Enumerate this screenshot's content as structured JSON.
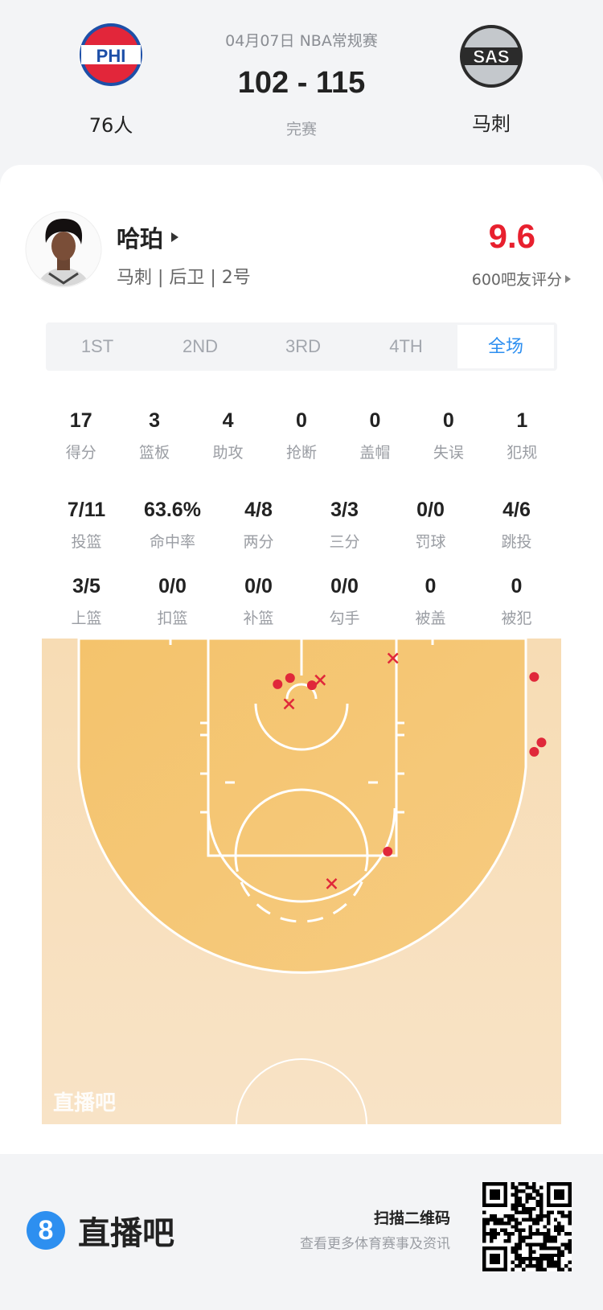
{
  "match": {
    "date_league": "04月07日 NBA常规赛",
    "score": "102 - 115",
    "status": "完赛",
    "home": {
      "name": "76人",
      "logo_text": "PHI",
      "colors": [
        "#1d4fa8",
        "#e2263a"
      ]
    },
    "away": {
      "name": "马刺",
      "logo_text": "SAS",
      "colors": [
        "#2b2b2b",
        "#c4c8cc"
      ]
    }
  },
  "player": {
    "name": "哈珀",
    "info": "马刺 | 后卫 | 2号",
    "rating": "9.6",
    "rating_label": "600吧友评分",
    "rating_color": "#e8202e"
  },
  "tabs": [
    {
      "label": "1ST",
      "selected": false
    },
    {
      "label": "2ND",
      "selected": false
    },
    {
      "label": "3RD",
      "selected": false
    },
    {
      "label": "4TH",
      "selected": false
    },
    {
      "label": "全场",
      "selected": true
    }
  ],
  "stats_basic": [
    {
      "value": "17",
      "label": "得分"
    },
    {
      "value": "3",
      "label": "篮板"
    },
    {
      "value": "4",
      "label": "助攻"
    },
    {
      "value": "0",
      "label": "抢断"
    },
    {
      "value": "0",
      "label": "盖帽"
    },
    {
      "value": "0",
      "label": "失误"
    },
    {
      "value": "1",
      "label": "犯规"
    }
  ],
  "stats_shooting": [
    {
      "value": "7/11",
      "label": "投篮"
    },
    {
      "value": "63.6%",
      "label": "命中率"
    },
    {
      "value": "4/8",
      "label": "两分"
    },
    {
      "value": "3/3",
      "label": "三分"
    },
    {
      "value": "0/0",
      "label": "罚球"
    },
    {
      "value": "4/6",
      "label": "跳投"
    }
  ],
  "stats_types": [
    {
      "value": "3/5",
      "label": "上篮"
    },
    {
      "value": "0/0",
      "label": "扣篮"
    },
    {
      "value": "0/0",
      "label": "补篮"
    },
    {
      "value": "0/0",
      "label": "勾手"
    },
    {
      "value": "0",
      "label": "被盖"
    },
    {
      "value": "0",
      "label": "被犯"
    }
  ],
  "chart_data": {
    "type": "scatter",
    "units": "feet (x: lateral from basket center, y: from baseline)",
    "made_color": "#e0283a",
    "missed_color": "#e0283a",
    "made": [
      [
        -2.3,
        4.4
      ],
      [
        -1.1,
        3.8
      ],
      [
        1.0,
        4.5
      ],
      [
        22.4,
        3.7
      ],
      [
        23.1,
        10.0
      ],
      [
        22.4,
        10.9
      ],
      [
        8.3,
        20.5
      ]
    ],
    "missed": [
      [
        1.8,
        4.0
      ],
      [
        -1.2,
        6.3
      ],
      [
        8.8,
        1.9
      ],
      [
        2.9,
        23.6
      ]
    ],
    "watermark": "直播吧"
  },
  "footer": {
    "brand_icon_text": "8",
    "brand": "直播吧",
    "scan_title": "扫描二维码",
    "scan_sub": "查看更多体育赛事及资讯",
    "brand_color": "#2d8ff0"
  }
}
